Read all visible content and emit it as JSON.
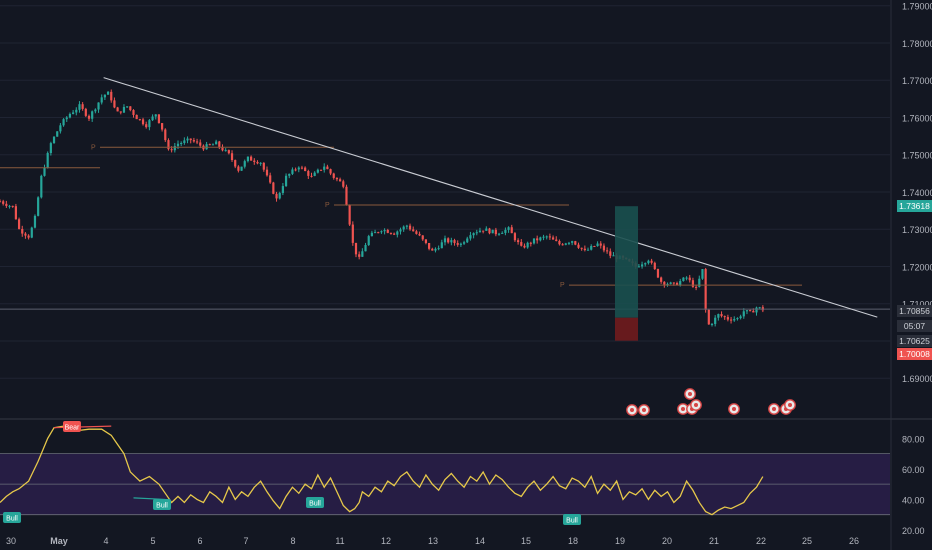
{
  "theme": {
    "background": "#131722",
    "grid": "#1f2433",
    "text": "#b2b5be",
    "up": "#26a69a",
    "down": "#ef5350",
    "trendline": "#c9ccd3",
    "level": "#8a5a3c",
    "rsi": "#e6c84a",
    "rsi_band": "#2a1f4a",
    "long_profit": "#19504f",
    "long_loss": "#6b1a1d",
    "separator": "#2a2e39"
  },
  "chart_data": [
    {
      "type": "candlestick",
      "title": "",
      "x_ticks": [
        "30",
        "May",
        "4",
        "5",
        "6",
        "7",
        "8",
        "11",
        "12",
        "13",
        "14",
        "15",
        "18",
        "19",
        "20",
        "21",
        "22",
        "25",
        "26"
      ],
      "y_ticks": [
        "1.79000",
        "1.78000",
        "1.77000",
        "1.76000",
        "1.75000",
        "1.74000",
        "1.73000",
        "1.72000",
        "1.71000",
        "1.70000",
        "1.69000"
      ],
      "ylim": [
        1.6855,
        1.791
      ],
      "grid": false,
      "path_close": [
        [
          0,
          1.7375
        ],
        [
          2,
          1.736
        ],
        [
          3,
          1.73
        ],
        [
          4.6,
          1.728
        ],
        [
          5.5,
          1.733
        ],
        [
          6.5,
          1.744
        ],
        [
          8,
          1.753
        ],
        [
          9.5,
          1.758
        ],
        [
          11,
          1.761
        ],
        [
          12.5,
          1.763
        ],
        [
          14,
          1.76
        ],
        [
          16.2,
          1.766
        ],
        [
          17.2,
          1.7665
        ],
        [
          18.3,
          1.761
        ],
        [
          20,
          1.763
        ],
        [
          21.5,
          1.76
        ],
        [
          23,
          1.758
        ],
        [
          24.5,
          1.761
        ],
        [
          25.5,
          1.757
        ],
        [
          26.5,
          1.751
        ],
        [
          28,
          1.753
        ],
        [
          30,
          1.754
        ],
        [
          32,
          1.752
        ],
        [
          34,
          1.753
        ],
        [
          36,
          1.75
        ],
        [
          37.5,
          1.746
        ],
        [
          39,
          1.749
        ],
        [
          41,
          1.748
        ],
        [
          42.5,
          1.742
        ],
        [
          43.5,
          1.738
        ],
        [
          45,
          1.744
        ],
        [
          47,
          1.747
        ],
        [
          49,
          1.744
        ],
        [
          51,
          1.747
        ],
        [
          52.5,
          1.744
        ],
        [
          54,
          1.742
        ],
        [
          54.8,
          1.734
        ],
        [
          55.6,
          1.725
        ],
        [
          56.5,
          1.722
        ],
        [
          58,
          1.728
        ],
        [
          60,
          1.73
        ],
        [
          62,
          1.729
        ],
        [
          64,
          1.731
        ],
        [
          66,
          1.728
        ],
        [
          68,
          1.724
        ],
        [
          70,
          1.727
        ],
        [
          72.5,
          1.726
        ],
        [
          74,
          1.729
        ],
        [
          76,
          1.73
        ],
        [
          78,
          1.729
        ],
        [
          80,
          1.73
        ],
        [
          82,
          1.725
        ],
        [
          84,
          1.727
        ],
        [
          86,
          1.728
        ],
        [
          88,
          1.726
        ],
        [
          90,
          1.727
        ],
        [
          92,
          1.724
        ],
        [
          94,
          1.726
        ],
        [
          96,
          1.723
        ],
        [
          98,
          1.722
        ],
        [
          100,
          1.72
        ],
        [
          102,
          1.722
        ],
        [
          104,
          1.716
        ],
        [
          106,
          1.715
        ],
        [
          108,
          1.717
        ],
        [
          109.5,
          1.714
        ],
        [
          110.5,
          1.719
        ],
        [
          111.2,
          1.704
        ],
        [
          112,
          1.705
        ],
        [
          113,
          1.707
        ],
        [
          114.5,
          1.706
        ],
        [
          116,
          1.706
        ],
        [
          117,
          1.708
        ],
        [
          118,
          1.7075
        ],
        [
          119,
          1.709
        ],
        [
          120,
          1.7085
        ]
      ],
      "price_labels": [
        {
          "text": "1.73618",
          "color": "#26a69a"
        },
        {
          "text": "1.70856",
          "color": "#cfd2d8"
        },
        {
          "text": "05:07",
          "color": "#cfd2d8"
        },
        {
          "text": "1.70625",
          "color": "#cfd2d8"
        },
        {
          "text": "1.70008",
          "color": "#ef5350"
        }
      ],
      "pivot_label": "P",
      "pivot_levels": [
        1.752,
        1.7365,
        1.715
      ],
      "level_line": 1.7465,
      "current_price": 1.70856,
      "trendline": [
        [
          16.3,
          1.7707
        ],
        [
          138,
          1.7064
        ]
      ],
      "position": {
        "target": 1.73618,
        "entry": 1.70625,
        "stop": 1.70008
      }
    },
    {
      "type": "line",
      "title": "",
      "y_ticks": [
        "80.00",
        "60.00",
        "40.00",
        "20.00"
      ],
      "ylim": [
        18,
        94
      ],
      "band": [
        30,
        70
      ],
      "mid": 50,
      "values": [
        [
          0,
          38
        ],
        [
          1,
          42
        ],
        [
          2,
          45
        ],
        [
          3,
          47
        ],
        [
          4.5,
          52
        ],
        [
          6,
          65
        ],
        [
          7.5,
          80
        ],
        [
          8.5,
          87
        ],
        [
          10,
          88
        ],
        [
          12,
          85
        ],
        [
          14,
          86
        ],
        [
          16,
          86
        ],
        [
          17.5,
          82
        ],
        [
          18.5,
          76
        ],
        [
          19.5,
          70
        ],
        [
          20.5,
          58
        ],
        [
          22,
          52
        ],
        [
          23.5,
          55
        ],
        [
          25,
          50
        ],
        [
          26,
          44
        ],
        [
          27,
          38
        ],
        [
          28,
          42
        ],
        [
          29,
          38
        ],
        [
          30,
          43
        ],
        [
          31,
          40
        ],
        [
          32,
          38
        ],
        [
          33,
          45
        ],
        [
          34,
          42
        ],
        [
          35,
          38
        ],
        [
          36,
          48
        ],
        [
          37,
          40
        ],
        [
          38,
          45
        ],
        [
          39,
          42
        ],
        [
          40,
          48
        ],
        [
          41,
          52
        ],
        [
          42,
          45
        ],
        [
          43,
          39
        ],
        [
          44,
          34
        ],
        [
          45,
          42
        ],
        [
          46,
          48
        ],
        [
          47,
          44
        ],
        [
          48,
          50
        ],
        [
          49,
          47
        ],
        [
          50,
          56
        ],
        [
          51,
          48
        ],
        [
          52,
          54
        ],
        [
          53,
          45
        ],
        [
          54,
          36
        ],
        [
          55,
          32
        ],
        [
          55.8,
          34
        ],
        [
          56.5,
          38
        ],
        [
          57,
          45
        ],
        [
          58,
          42
        ],
        [
          59,
          48
        ],
        [
          60,
          45
        ],
        [
          61,
          52
        ],
        [
          62,
          49
        ],
        [
          63,
          55
        ],
        [
          64,
          58
        ],
        [
          65,
          52
        ],
        [
          66,
          48
        ],
        [
          67,
          56
        ],
        [
          68,
          50
        ],
        [
          69,
          46
        ],
        [
          70,
          53
        ],
        [
          71,
          57
        ],
        [
          72,
          52
        ],
        [
          73,
          48
        ],
        [
          74,
          55
        ],
        [
          75,
          52
        ],
        [
          76,
          58
        ],
        [
          77,
          50
        ],
        [
          78,
          56
        ],
        [
          79,
          53
        ],
        [
          80,
          48
        ],
        [
          81,
          44
        ],
        [
          82,
          42
        ],
        [
          83,
          48
        ],
        [
          84,
          52
        ],
        [
          85,
          46
        ],
        [
          86,
          50
        ],
        [
          87,
          55
        ],
        [
          88,
          49
        ],
        [
          89,
          47
        ],
        [
          90,
          54
        ],
        [
          91,
          52
        ],
        [
          92,
          48
        ],
        [
          93,
          55
        ],
        [
          94,
          44
        ],
        [
          95,
          50
        ],
        [
          96,
          46
        ],
        [
          97,
          52
        ],
        [
          98,
          40
        ],
        [
          99,
          45
        ],
        [
          100,
          43
        ],
        [
          101,
          47
        ],
        [
          102,
          40
        ],
        [
          103,
          46
        ],
        [
          104,
          42
        ],
        [
          105,
          45
        ],
        [
          106,
          38
        ],
        [
          107,
          42
        ],
        [
          108,
          52
        ],
        [
          109,
          46
        ],
        [
          110,
          38
        ],
        [
          111,
          32
        ],
        [
          112,
          30
        ],
        [
          113,
          33
        ],
        [
          114,
          35
        ],
        [
          115,
          34
        ],
        [
          116,
          36
        ],
        [
          117,
          38
        ],
        [
          118,
          44
        ],
        [
          119,
          48
        ],
        [
          120,
          55
        ]
      ],
      "signals": [
        {
          "text": "Bear",
          "color": "#ef5350"
        },
        {
          "text": "Bull",
          "color": "#26a69a"
        },
        {
          "text": "Bull",
          "color": "#26a69a"
        },
        {
          "text": "Bull",
          "color": "#26a69a"
        },
        {
          "text": "Bull",
          "color": "#26a69a"
        }
      ]
    }
  ]
}
